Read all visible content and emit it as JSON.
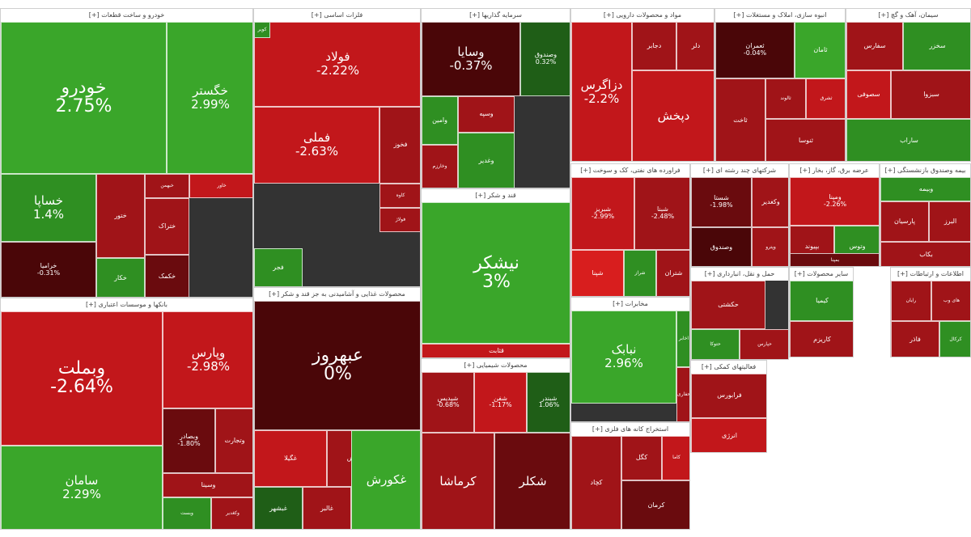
{
  "chart_data": {
    "type": "treemap",
    "colors": {
      "strong_green": "#3aa62a",
      "green": "#2f8f22",
      "dark_green": "#1f5e17",
      "strong_red": "#c2171b",
      "red": "#a01418",
      "dark_red": "#6a0b0e",
      "maroon": "#4a0608"
    },
    "sectors": [
      {
        "name": "خودرو و ساخت قطعات [+]",
        "tiles": [
          {
            "symbol": "خودرو",
            "change": "2.75%",
            "color": "#3aa62a"
          },
          {
            "symbol": "خگستر",
            "change": "2.99%",
            "color": "#3aa62a"
          },
          {
            "symbol": "خساپا",
            "change": "1.4%",
            "color": "#2f8f22"
          },
          {
            "symbol": "خرامیا",
            "change": "-0.31%",
            "color": "#4a0608"
          },
          {
            "symbol": "ختور",
            "change": "",
            "color": "#a01418"
          },
          {
            "symbol": "خبهمن",
            "change": "",
            "color": "#a01418"
          },
          {
            "symbol": "خاور",
            "change": "",
            "color": "#c2171b"
          },
          {
            "symbol": "خکار",
            "change": "",
            "color": "#2f8f22"
          },
          {
            "symbol": "ختراک",
            "change": "",
            "color": "#a01418"
          },
          {
            "symbol": "خکمک",
            "change": "",
            "color": "#6a0b0e"
          }
        ]
      },
      {
        "name": "فلزات اساسی [+]",
        "tiles": [
          {
            "symbol": "فولاد",
            "change": "-2.22%",
            "color": "#c2171b"
          },
          {
            "symbol": "فملی",
            "change": "-2.63%",
            "color": "#c2171b"
          },
          {
            "symbol": "فخوز",
            "change": "",
            "color": "#a01418"
          },
          {
            "symbol": "کاوه",
            "change": "",
            "color": "#a01418"
          },
          {
            "symbol": "فولاژ",
            "change": "",
            "color": "#a01418"
          },
          {
            "symbol": "فجر",
            "change": "",
            "color": "#2f8f22"
          },
          {
            "symbol": "کویر",
            "change": "",
            "color": "#2f8f22"
          }
        ]
      },
      {
        "name": "سرمایه گذاریها [+]",
        "tiles": [
          {
            "symbol": "وسایا",
            "change": "-0.37%",
            "color": "#4a0608"
          },
          {
            "symbol": "وصندوق",
            "change": "0.32%",
            "color": "#1f5e17"
          },
          {
            "symbol": "وامین",
            "change": "",
            "color": "#2f8f22"
          },
          {
            "symbol": "وخارزم",
            "change": "",
            "color": "#a01418"
          },
          {
            "symbol": "وسپه",
            "change": "",
            "color": "#a01418"
          },
          {
            "symbol": "وغدیر",
            "change": "",
            "color": "#2f8f22"
          }
        ]
      },
      {
        "name": "مواد و محصولات دارویی [+]",
        "tiles": [
          {
            "symbol": "دزاگرس",
            "change": "-2.2%",
            "color": "#c2171b"
          },
          {
            "symbol": "دجابر",
            "change": "",
            "color": "#a01418"
          },
          {
            "symbol": "دلر",
            "change": "",
            "color": "#a01418"
          },
          {
            "symbol": "دپخش",
            "change": "",
            "color": "#c2171b"
          }
        ]
      },
      {
        "name": "انبوه سازی، املاک و مستغلات [+]",
        "tiles": [
          {
            "symbol": "ثعمران",
            "change": "-0.04%",
            "color": "#4a0608"
          },
          {
            "symbol": "ثامان",
            "change": "",
            "color": "#3aa62a"
          },
          {
            "symbol": "ثاخت",
            "change": "",
            "color": "#a01418"
          },
          {
            "symbol": "ثالوند",
            "change": "",
            "color": "#a01418"
          },
          {
            "symbol": "ثشرق",
            "change": "",
            "color": "#c2171b"
          },
          {
            "symbol": "ثنوسا",
            "change": "",
            "color": "#a01418"
          }
        ]
      },
      {
        "name": "سیمان، آهک و گچ [+]",
        "tiles": [
          {
            "symbol": "سفارس",
            "change": "",
            "color": "#a01418"
          },
          {
            "symbol": "سخزر",
            "change": "",
            "color": "#2f8f22"
          },
          {
            "symbol": "سصوفی",
            "change": "",
            "color": "#c2171b"
          },
          {
            "symbol": "سبزوا",
            "change": "",
            "color": "#a01418"
          },
          {
            "symbol": "ساراب",
            "change": "",
            "color": "#2f8f22"
          }
        ]
      },
      {
        "name": "قند و شکر [+]",
        "tiles": [
          {
            "symbol": "نیشکر",
            "change": "3%",
            "color": "#3aa62a"
          },
          {
            "symbol": "قثابت",
            "change": "",
            "color": "#c2171b"
          }
        ]
      },
      {
        "name": "محصولات غذایی و آشامیدنی به جز قند و شکر [+]",
        "tiles": [
          {
            "symbol": "عبهروز",
            "change": "0%",
            "color": "#4a0608"
          },
          {
            "symbol": "غگیلا",
            "change": "",
            "color": "#c2171b"
          },
          {
            "symbol": "غنوش",
            "change": "",
            "color": "#a01418"
          },
          {
            "symbol": "غبشهر",
            "change": "",
            "color": "#1f5e17"
          },
          {
            "symbol": "غالبر",
            "change": "",
            "color": "#a01418"
          },
          {
            "symbol": "غکورش",
            "change": "",
            "color": "#3aa62a"
          }
        ]
      },
      {
        "name": "محصولات شیمیایی [+]",
        "tiles": [
          {
            "symbol": "شپدیس",
            "change": "-0.68%",
            "color": "#a01418"
          },
          {
            "symbol": "شفن",
            "change": "-1.17%",
            "color": "#c2171b"
          },
          {
            "symbol": "شبندر",
            "change": "1.06%",
            "color": "#1f5e17"
          },
          {
            "symbol": "کرماشا",
            "change": "",
            "color": "#a01418"
          },
          {
            "symbol": "شکلر",
            "change": "",
            "color": "#6a0b0e"
          }
        ]
      },
      {
        "name": "عرضه برق، گاز، بخار [+]",
        "tiles": [
          {
            "symbol": "ومپنا",
            "change": "-2.26%",
            "color": "#c2171b"
          },
          {
            "symbol": "بپیوند",
            "change": "",
            "color": "#a01418"
          },
          {
            "symbol": "وتوس",
            "change": "",
            "color": "#2f8f22"
          },
          {
            "symbol": "بمپنا",
            "change": "",
            "color": "#6a0b0e"
          }
        ]
      },
      {
        "name": "شرکتهای چند رشته ای [+]",
        "tiles": [
          {
            "symbol": "شستا",
            "change": "-1.98%",
            "color": "#6a0b0e"
          },
          {
            "symbol": "وکغدیر",
            "change": "",
            "color": "#a01418"
          },
          {
            "symbol": "وصندوق",
            "change": "",
            "color": "#4a0608"
          },
          {
            "symbol": "وپترو",
            "change": "",
            "color": "#a01418"
          }
        ]
      },
      {
        "name": "فراورده های نفتی، کک و سوخت [+]",
        "tiles": [
          {
            "symbol": "شبریز",
            "change": "-2.99%",
            "color": "#c2171b"
          },
          {
            "symbol": "شبنا",
            "change": "-2.48%",
            "color": "#a01418"
          },
          {
            "symbol": "شپنا",
            "change": "",
            "color": "#d81e1e"
          },
          {
            "symbol": "شراز",
            "change": "",
            "color": "#2f8f22"
          },
          {
            "symbol": "شتران",
            "change": "",
            "color": "#a01418"
          }
        ]
      },
      {
        "name": "بیمه وصندوق بازنشستگی [+]",
        "tiles": [
          {
            "symbol": "وبیمه",
            "change": "",
            "color": "#2f8f22"
          },
          {
            "symbol": "پارسیان",
            "change": "",
            "color": "#a01418"
          },
          {
            "symbol": "البرز",
            "change": "",
            "color": "#a01418"
          },
          {
            "symbol": "بکاب",
            "change": "",
            "color": "#a01418"
          }
        ]
      },
      {
        "name": "بانکها و موسسات اعتباری [+]",
        "tiles": [
          {
            "symbol": "وبملت",
            "change": "-2.64%",
            "color": "#c2171b"
          },
          {
            "symbol": "سامان",
            "change": "2.29%",
            "color": "#3aa62a"
          },
          {
            "symbol": "وپارس",
            "change": "-2.98%",
            "color": "#c2171b"
          },
          {
            "symbol": "وبصادر",
            "change": "-1.80%",
            "color": "#6a0b0e"
          },
          {
            "symbol": "وتجارت",
            "change": "",
            "color": "#a01418"
          },
          {
            "symbol": "وسینا",
            "change": "",
            "color": "#a01418"
          },
          {
            "symbol": "وبست",
            "change": "",
            "color": "#2f8f22"
          },
          {
            "symbol": "وکغدیر",
            "change": "",
            "color": "#a01418"
          }
        ]
      },
      {
        "name": "مخابرات [+]",
        "tiles": [
          {
            "symbol": "نبابک",
            "change": "2.96%",
            "color": "#3aa62a"
          },
          {
            "symbol": "اخابر",
            "change": "",
            "color": "#2f8f22"
          },
          {
            "symbol": "حفاری",
            "change": "",
            "color": "#a01418"
          }
        ]
      },
      {
        "name": "استخراج کانه های فلزی [+]",
        "tiles": [
          {
            "symbol": "کچاد",
            "change": "",
            "color": "#a01418"
          },
          {
            "symbol": "کگل",
            "change": "",
            "color": "#a01418"
          },
          {
            "symbol": "کاما",
            "change": "",
            "color": "#c2171b"
          },
          {
            "symbol": "کرمان",
            "change": "",
            "color": "#6a0b0e"
          }
        ]
      },
      {
        "name": "حمل و نقل، انبارداری [+]",
        "tiles": [
          {
            "symbol": "حکشتی",
            "change": "",
            "color": "#a01418"
          },
          {
            "symbol": "حتوکا",
            "change": "",
            "color": "#2f8f22"
          },
          {
            "symbol": "حپارس",
            "change": "",
            "color": "#a01418"
          }
        ]
      },
      {
        "name": "فعالیتهای کمکی [+]",
        "tiles": [
          {
            "symbol": "فرابورس",
            "change": "",
            "color": "#a01418"
          },
          {
            "symbol": "انرژی",
            "change": "",
            "color": "#c2171b"
          }
        ]
      },
      {
        "name": "سایر محصولات [+]",
        "tiles": [
          {
            "symbol": "کیمیا",
            "change": "",
            "color": "#2f8f22"
          },
          {
            "symbol": "کاریزم",
            "change": "",
            "color": "#a01418"
          }
        ]
      },
      {
        "name": "اطلاعات و ارتباطات [+]",
        "tiles": [
          {
            "symbol": "رایان",
            "change": "",
            "color": "#a01418"
          },
          {
            "symbol": "های وب",
            "change": "",
            "color": "#a01418"
          },
          {
            "symbol": "فاذر",
            "change": "",
            "color": "#a01418"
          },
          {
            "symbol": "کرکال",
            "change": "",
            "color": "#2f8f22"
          }
        ]
      }
    ]
  }
}
